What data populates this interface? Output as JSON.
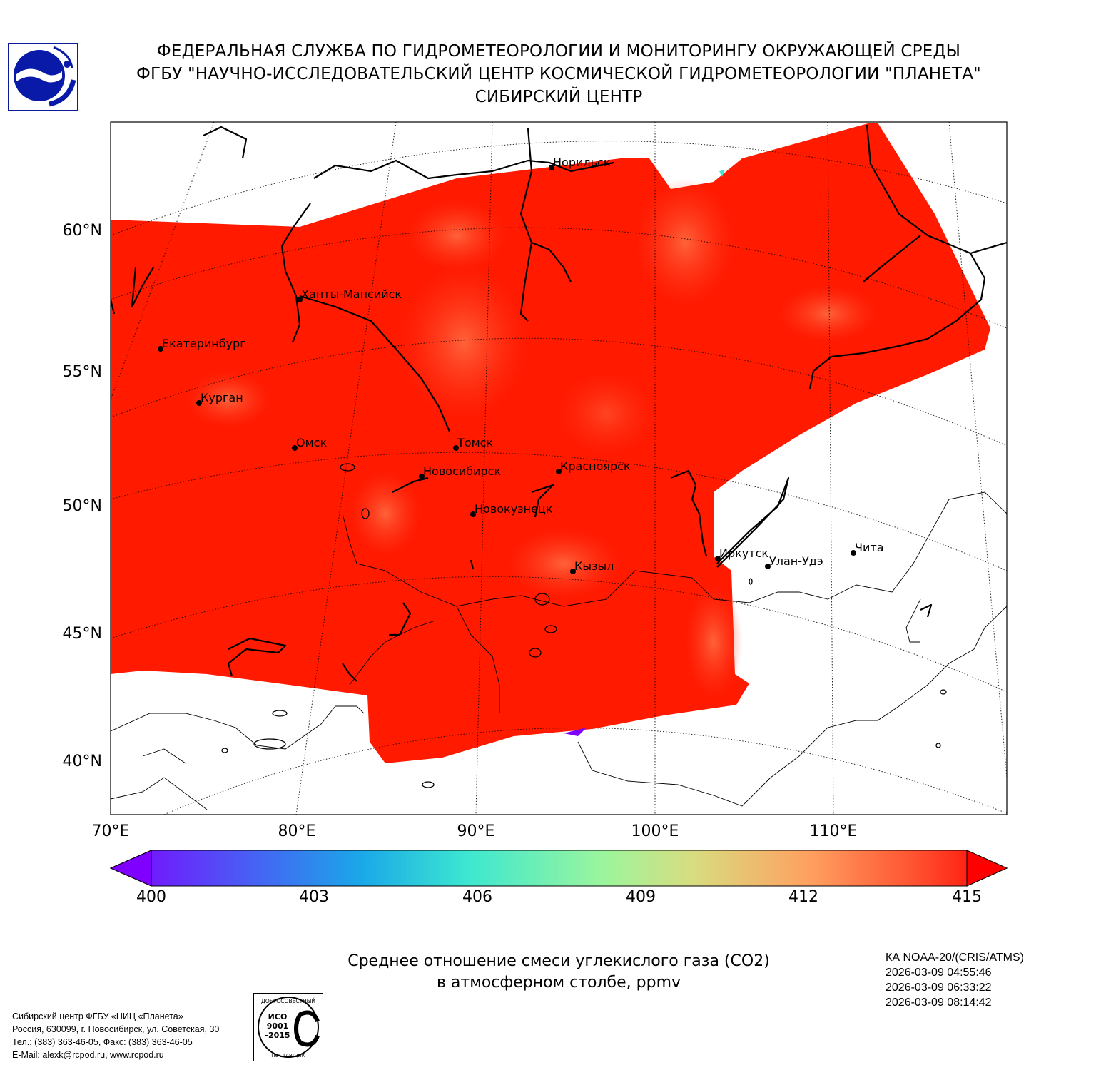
{
  "header": {
    "line1": "ФЕДЕРАЛЬНАЯ СЛУЖБА ПО ГИДРОМЕТЕОРОЛОГИИ И МОНИТОРИНГУ ОКРУЖАЮЩЕЙ СРЕДЫ",
    "line2": "ФГБУ \"НАУЧНО-ИССЛЕДОВАТЕЛЬСКИЙ ЦЕНТР КОСМИЧЕСКОЙ ГИДРОМЕТЕОРОЛОГИИ \"ПЛАНЕТА\"",
    "line3": "СИБИРСКИЙ ЦЕНТР"
  },
  "map": {
    "lat_labels": [
      "60°N",
      "55°N",
      "50°N",
      "45°N",
      "40°N"
    ],
    "lon_labels": [
      "70°E",
      "80°E",
      "90°E",
      "100°E",
      "110°E"
    ],
    "cities": [
      {
        "name": "Норильск"
      },
      {
        "name": "Ханты-Мансийск"
      },
      {
        "name": "Екатеринбург"
      },
      {
        "name": "Курган"
      },
      {
        "name": "Омск"
      },
      {
        "name": "Томск"
      },
      {
        "name": "Новосибирск"
      },
      {
        "name": "Красноярск"
      },
      {
        "name": "Новокузнецк"
      },
      {
        "name": "Кызыл"
      },
      {
        "name": "Иркутск"
      },
      {
        "name": "Улан-Удэ"
      },
      {
        "name": "Чита"
      }
    ]
  },
  "colorbar": {
    "ticks": [
      "400",
      "403",
      "406",
      "409",
      "412",
      "415"
    ],
    "min": 400,
    "max": 415
  },
  "caption": {
    "line1": "Среднее отношение смеси углекислого газа (CO2)",
    "line2": "в атмосферном столбе, ppmv"
  },
  "satellite": {
    "name": "КА NOAA-20/(CRIS/ATMS)",
    "times": [
      "2026-03-09 04:55:46",
      "2026-03-09 06:33:22",
      "2026-03-09 08:14:42"
    ]
  },
  "address": {
    "line1": "Сибирский центр ФГБУ «НИЦ «Планета»",
    "line2": "Россия, 630099, г. Новосибирск, ул. Советская, 30",
    "line3": "Тел.: (383) 363-46-05, Факс: (383) 363-46-05",
    "line4": "E-Mail: alexk@rcpod.ru, www.rcpod.ru"
  },
  "certificate": {
    "top": "ДОБРОСОВЕСТНЫЙ",
    "iso": "ИСО",
    "num": "9001",
    "year": "-2015",
    "bottom": "ПОСТАВЩИК"
  },
  "colors": {
    "high": "#ff1a00",
    "mid": "#ff5a30",
    "low": "#7f00ff"
  }
}
